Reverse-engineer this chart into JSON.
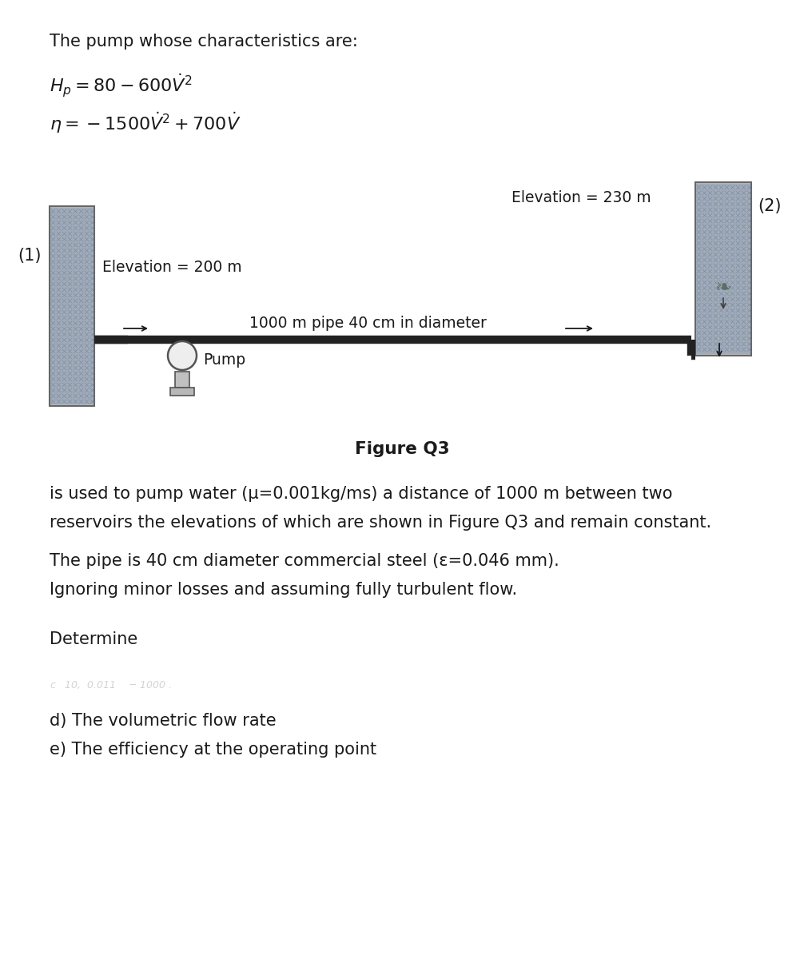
{
  "title_line": "The pump whose characteristics are:",
  "eq1_text": "H",
  "eq2_text": "= 80 – 600",
  "eq3_text": "η = −1500",
  "elevation_left": "Elevation = 200 m",
  "elevation_right": "Elevation = 230 m",
  "label1": "(1)",
  "label2": "(2)",
  "pipe_label": "1000 m pipe 40 cm in diameter",
  "pump_label": "Pump",
  "figure_caption": "Figure Q3",
  "body_text1": "is used to pump water (μ=0.001kg/ms) a distance of 1000 m between two",
  "body_text2": "reservoirs the elevations of which are shown in Figure Q3 and remain constant.",
  "body_text3": "The pipe is 40 cm diameter commercial steel (ε=0.046 mm).",
  "body_text4": "Ignoring minor losses and assuming fully turbulent flow.",
  "determine": "Determine",
  "item_d": "d) The volumetric flow rate",
  "item_e": "e) The efficiency at the operating point",
  "bg_color": "#ffffff",
  "text_color": "#1a1a1a",
  "pipe_color": "#222222",
  "reservoir_gray": "#b8b8b8",
  "reservoir_edge": "#666666",
  "water_color": "#9eaab8",
  "hatch_color": "#8090a0"
}
